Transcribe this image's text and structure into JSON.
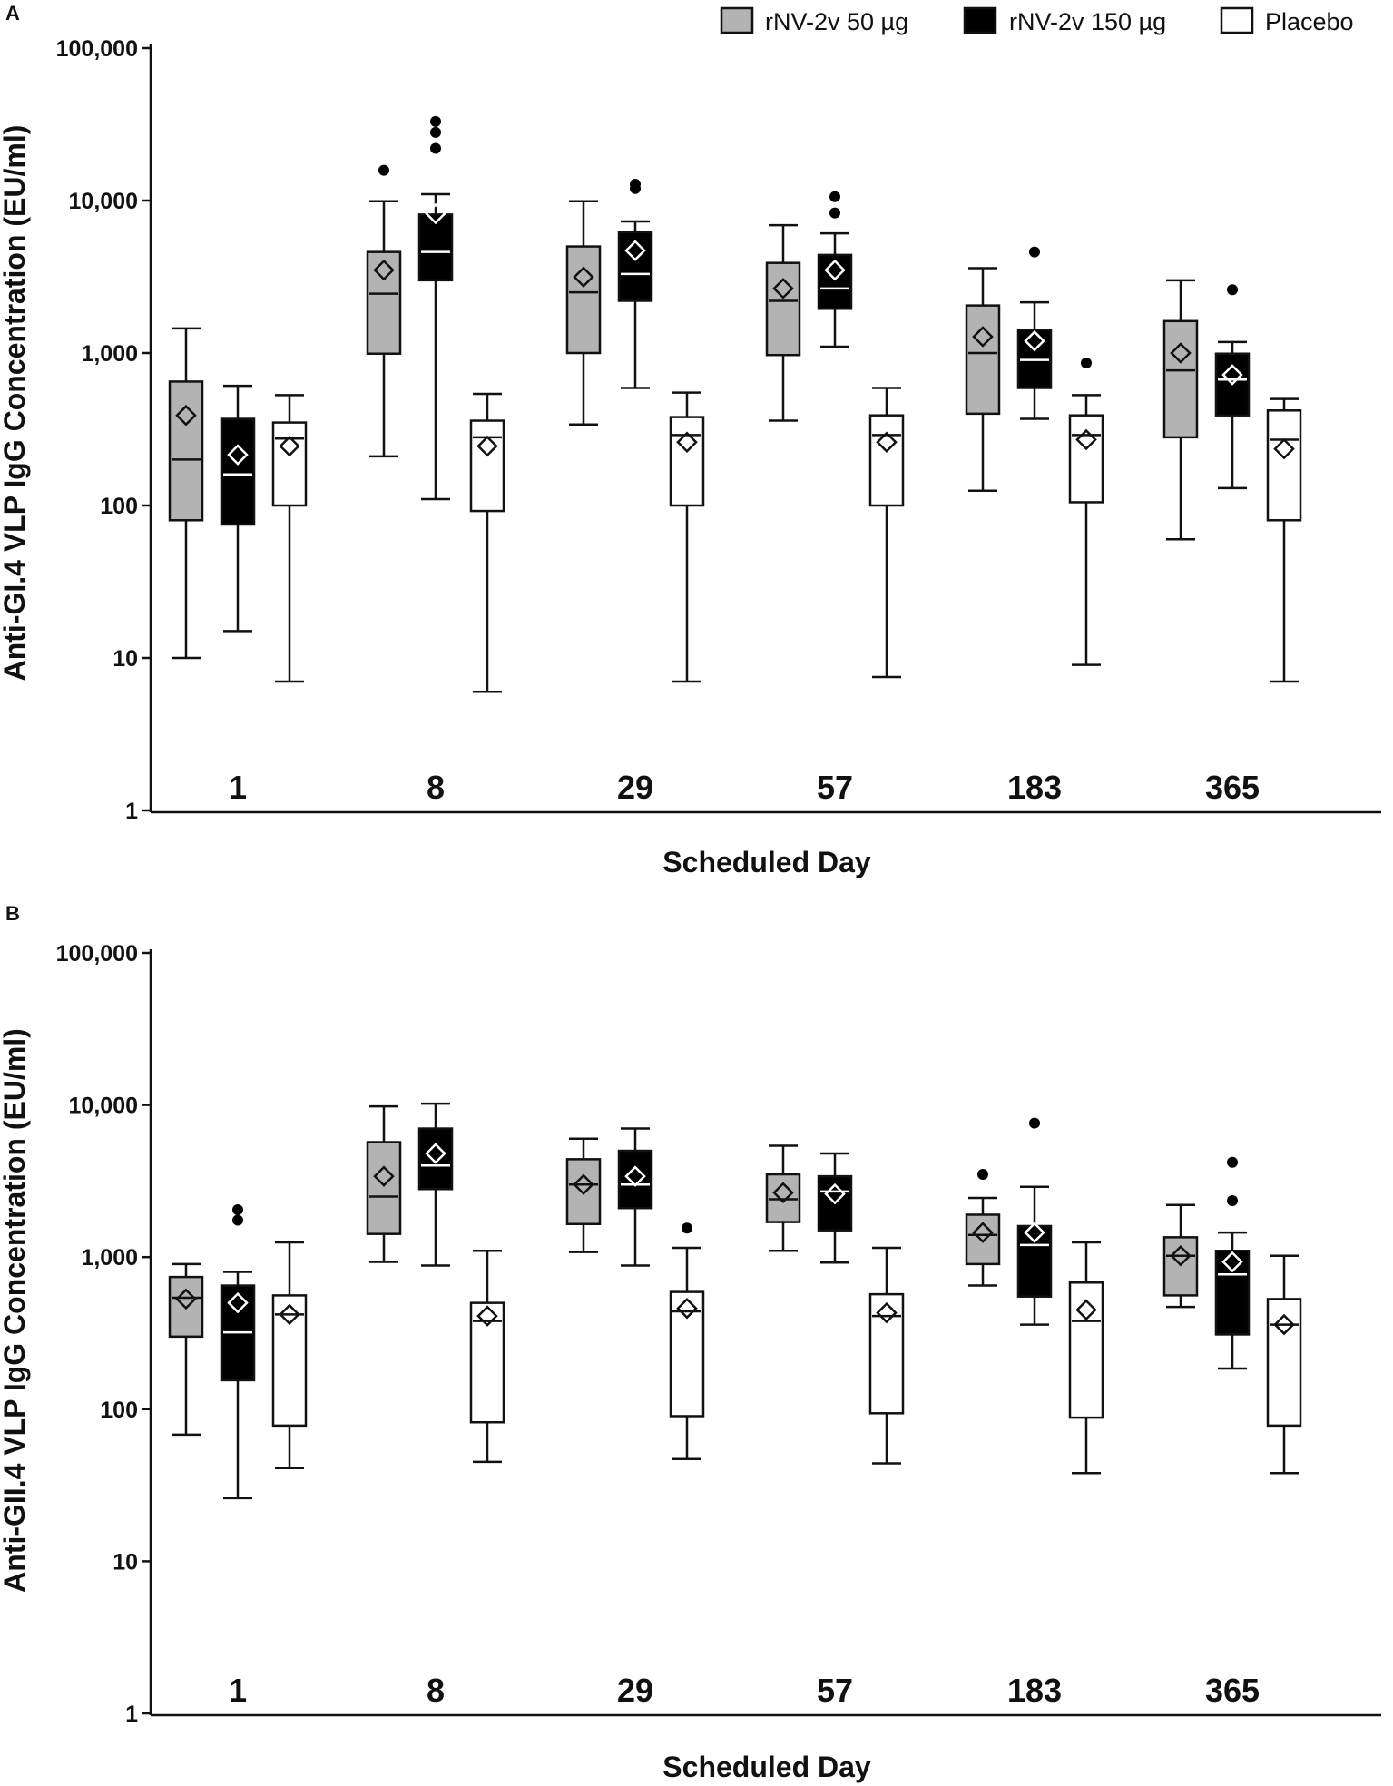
{
  "legend": {
    "items": [
      {
        "label": "rNV-2v 50 µg",
        "fill": "#b3b3b3"
      },
      {
        "label": "rNV-2v 150 µg",
        "fill": "#000000"
      },
      {
        "label": "Placebo",
        "fill": "#ffffff"
      }
    ]
  },
  "colors": {
    "group_fills": [
      "#b3b3b3",
      "#000000",
      "#ffffff"
    ],
    "median_on_dark": "#ffffff",
    "median_on_light": "#111111",
    "outline": "#111111"
  },
  "chart_data": [
    {
      "type": "box",
      "panel": "A",
      "ylabel": "Anti-GI.4 VLP IgG Concentration (EU/ml)",
      "xlabel": "Scheduled Day",
      "yscale": "log10",
      "ylim": [
        1,
        100000
      ],
      "yticks": [
        1,
        10,
        100,
        1000,
        10000,
        100000
      ],
      "ytick_labels": [
        "1",
        "10",
        "100",
        "1,000",
        "10,000",
        "100,000"
      ],
      "categories": [
        "1",
        "8",
        "29",
        "57",
        "183",
        "365"
      ],
      "series": [
        {
          "name": "rNV-2v 50 µg",
          "boxes": [
            {
              "wlo": 10,
              "q1": 80,
              "med": 200,
              "q3": 650,
              "whi": 1450,
              "mean": 390,
              "outliers": []
            },
            {
              "wlo": 210,
              "q1": 990,
              "med": 2450,
              "q3": 4600,
              "whi": 9900,
              "mean": 3500,
              "outliers": [
                15800
              ]
            },
            {
              "wlo": 340,
              "q1": 1000,
              "med": 2500,
              "q3": 5000,
              "whi": 9900,
              "mean": 3150,
              "outliers": []
            },
            {
              "wlo": 360,
              "q1": 970,
              "med": 2200,
              "q3": 3900,
              "whi": 6900,
              "mean": 2650,
              "outliers": []
            },
            {
              "wlo": 125,
              "q1": 400,
              "med": 1000,
              "q3": 2050,
              "whi": 3600,
              "mean": 1280,
              "outliers": []
            },
            {
              "wlo": 60,
              "q1": 280,
              "med": 770,
              "q3": 1620,
              "whi": 3000,
              "mean": 1000,
              "outliers": []
            }
          ]
        },
        {
          "name": "rNV-2v 150 µg",
          "boxes": [
            {
              "wlo": 15,
              "q1": 75,
              "med": 160,
              "q3": 370,
              "whi": 610,
              "mean": 215,
              "outliers": []
            },
            {
              "wlo": 110,
              "q1": 3000,
              "med": 4600,
              "q3": 8100,
              "whi": 11000,
              "mean": 8200,
              "outliers": [
                22000,
                28000,
                33000
              ]
            },
            {
              "wlo": 590,
              "q1": 2200,
              "med": 3300,
              "q3": 6200,
              "whi": 7300,
              "mean": 4700,
              "outliers": [
                12000,
                12800
              ]
            },
            {
              "wlo": 1100,
              "q1": 1950,
              "med": 2650,
              "q3": 4400,
              "whi": 6100,
              "mean": 3500,
              "outliers": [
                8300,
                10600
              ]
            },
            {
              "wlo": 370,
              "q1": 590,
              "med": 900,
              "q3": 1420,
              "whi": 2150,
              "mean": 1200,
              "outliers": [
                4600
              ]
            },
            {
              "wlo": 130,
              "q1": 390,
              "med": 670,
              "q3": 990,
              "whi": 1180,
              "mean": 720,
              "outliers": [
                2600
              ]
            }
          ]
        },
        {
          "name": "Placebo",
          "boxes": [
            {
              "wlo": 7,
              "q1": 100,
              "med": 275,
              "q3": 350,
              "whi": 530,
              "mean": 245,
              "outliers": []
            },
            {
              "wlo": 6,
              "q1": 92,
              "med": 280,
              "q3": 360,
              "whi": 540,
              "mean": 245,
              "outliers": []
            },
            {
              "wlo": 7,
              "q1": 100,
              "med": 290,
              "q3": 380,
              "whi": 550,
              "mean": 260,
              "outliers": []
            },
            {
              "wlo": 7.5,
              "q1": 100,
              "med": 290,
              "q3": 390,
              "whi": 590,
              "mean": 260,
              "outliers": []
            },
            {
              "wlo": 9,
              "q1": 105,
              "med": 290,
              "q3": 390,
              "whi": 530,
              "mean": 270,
              "outliers": [
                860
              ]
            },
            {
              "wlo": 7,
              "q1": 80,
              "med": 270,
              "q3": 420,
              "whi": 500,
              "mean": 235,
              "outliers": []
            }
          ]
        }
      ]
    },
    {
      "type": "box",
      "panel": "B",
      "ylabel": "Anti-GII.4 VLP IgG Concentration (EU/ml)",
      "xlabel": "Scheduled Day",
      "yscale": "log10",
      "ylim": [
        1,
        100000
      ],
      "yticks": [
        1,
        10,
        100,
        1000,
        10000,
        100000
      ],
      "ytick_labels": [
        "1",
        "10",
        "100",
        "1,000",
        "10,000",
        "100,000"
      ],
      "categories": [
        "1",
        "8",
        "29",
        "57",
        "183",
        "365"
      ],
      "series": [
        {
          "name": "rNV-2v 50 µg",
          "boxes": [
            {
              "wlo": 68,
              "q1": 300,
              "med": 540,
              "q3": 740,
              "whi": 900,
              "mean": 530,
              "outliers": []
            },
            {
              "wlo": 930,
              "q1": 1420,
              "med": 2500,
              "q3": 5700,
              "whi": 9800,
              "mean": 3400,
              "outliers": []
            },
            {
              "wlo": 1080,
              "q1": 1650,
              "med": 3000,
              "q3": 4400,
              "whi": 6000,
              "mean": 3000,
              "outliers": []
            },
            {
              "wlo": 1100,
              "q1": 1700,
              "med": 2400,
              "q3": 3500,
              "whi": 5400,
              "mean": 2650,
              "outliers": []
            },
            {
              "wlo": 650,
              "q1": 900,
              "med": 1400,
              "q3": 1900,
              "whi": 2450,
              "mean": 1450,
              "outliers": [
                3500
              ]
            },
            {
              "wlo": 470,
              "q1": 560,
              "med": 1020,
              "q3": 1350,
              "whi": 2200,
              "mean": 1020,
              "outliers": []
            }
          ]
        },
        {
          "name": "rNV-2v 150 µg",
          "boxes": [
            {
              "wlo": 26,
              "q1": 155,
              "med": 320,
              "q3": 650,
              "whi": 800,
              "mean": 500,
              "outliers": [
                1750,
                2050
              ]
            },
            {
              "wlo": 880,
              "q1": 2800,
              "med": 4000,
              "q3": 7000,
              "whi": 10200,
              "mean": 4800,
              "outliers": []
            },
            {
              "wlo": 880,
              "q1": 2100,
              "med": 3000,
              "q3": 5000,
              "whi": 7000,
              "mean": 3400,
              "outliers": []
            },
            {
              "wlo": 920,
              "q1": 1500,
              "med": 2700,
              "q3": 3400,
              "whi": 4800,
              "mean": 2600,
              "outliers": []
            },
            {
              "wlo": 360,
              "q1": 550,
              "med": 1200,
              "q3": 1600,
              "whi": 2900,
              "mean": 1450,
              "outliers": [
                7600
              ]
            },
            {
              "wlo": 185,
              "q1": 310,
              "med": 770,
              "q3": 1100,
              "whi": 1450,
              "mean": 930,
              "outliers": [
                2350,
                4200
              ]
            }
          ]
        },
        {
          "name": "Placebo",
          "boxes": [
            {
              "wlo": 41,
              "q1": 78,
              "med": 420,
              "q3": 560,
              "whi": 1250,
              "mean": 420,
              "outliers": []
            },
            {
              "wlo": 45,
              "q1": 82,
              "med": 380,
              "q3": 500,
              "whi": 1100,
              "mean": 410,
              "outliers": []
            },
            {
              "wlo": 47,
              "q1": 90,
              "med": 440,
              "q3": 590,
              "whi": 1150,
              "mean": 460,
              "outliers": [
                1550
              ]
            },
            {
              "wlo": 44,
              "q1": 94,
              "med": 410,
              "q3": 570,
              "whi": 1150,
              "mean": 430,
              "outliers": []
            },
            {
              "wlo": 38,
              "q1": 88,
              "med": 380,
              "q3": 680,
              "whi": 1250,
              "mean": 450,
              "outliers": []
            },
            {
              "wlo": 38,
              "q1": 78,
              "med": 360,
              "q3": 530,
              "whi": 1020,
              "mean": 360,
              "outliers": []
            }
          ]
        }
      ]
    }
  ]
}
